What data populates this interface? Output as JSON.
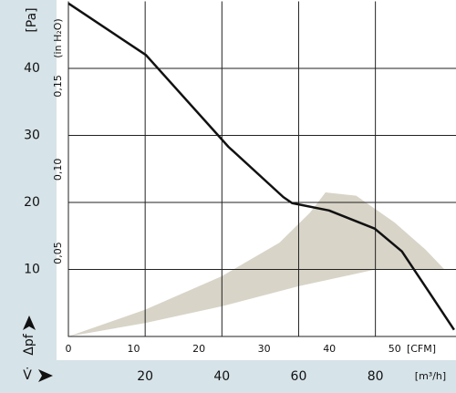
{
  "chart_data": {
    "type": "line",
    "y_label": "[Pa]",
    "y2_label": "(in H₂O)",
    "x_label": "[m³/h]",
    "x2_label": "[CFM]",
    "x_symbol": "V̇",
    "y_symbol": "Δpf",
    "xlim": [
      0,
      101
    ],
    "xticks": [
      20,
      40,
      60,
      80
    ],
    "x2lim": [
      0,
      59.4
    ],
    "x2ticks": [
      0,
      10,
      20,
      30,
      40,
      50
    ],
    "ylim": [
      0,
      50
    ],
    "yticks": [
      10,
      20,
      30,
      40
    ],
    "y2lim": [
      0,
      0.2007
    ],
    "y2ticks": [
      {
        "value": 0.05,
        "label": "0,05"
      },
      {
        "value": 0.1,
        "label": "0,10"
      },
      {
        "value": 0.15,
        "label": "0,15"
      }
    ],
    "grid": true,
    "series": [
      {
        "color": "#111111",
        "x": [
          0,
          20.2,
          41.7,
          56,
          58.3,
          67.9,
          79.8,
          86.9,
          94,
          100.5
        ],
        "values": [
          49.7,
          42,
          28.3,
          20.8,
          19.9,
          18.8,
          16.1,
          12.7,
          6.6,
          1
        ]
      }
    ],
    "area": {
      "color": "#d8d4c8",
      "x": [
        0,
        20,
        40,
        60,
        80,
        98,
        93,
        85,
        75,
        67,
        63,
        55,
        40,
        20
      ],
      "values": [
        0,
        2,
        4.5,
        7.5,
        10,
        10,
        13,
        17,
        21,
        21.5,
        18.5,
        14,
        9,
        4
      ]
    }
  }
}
